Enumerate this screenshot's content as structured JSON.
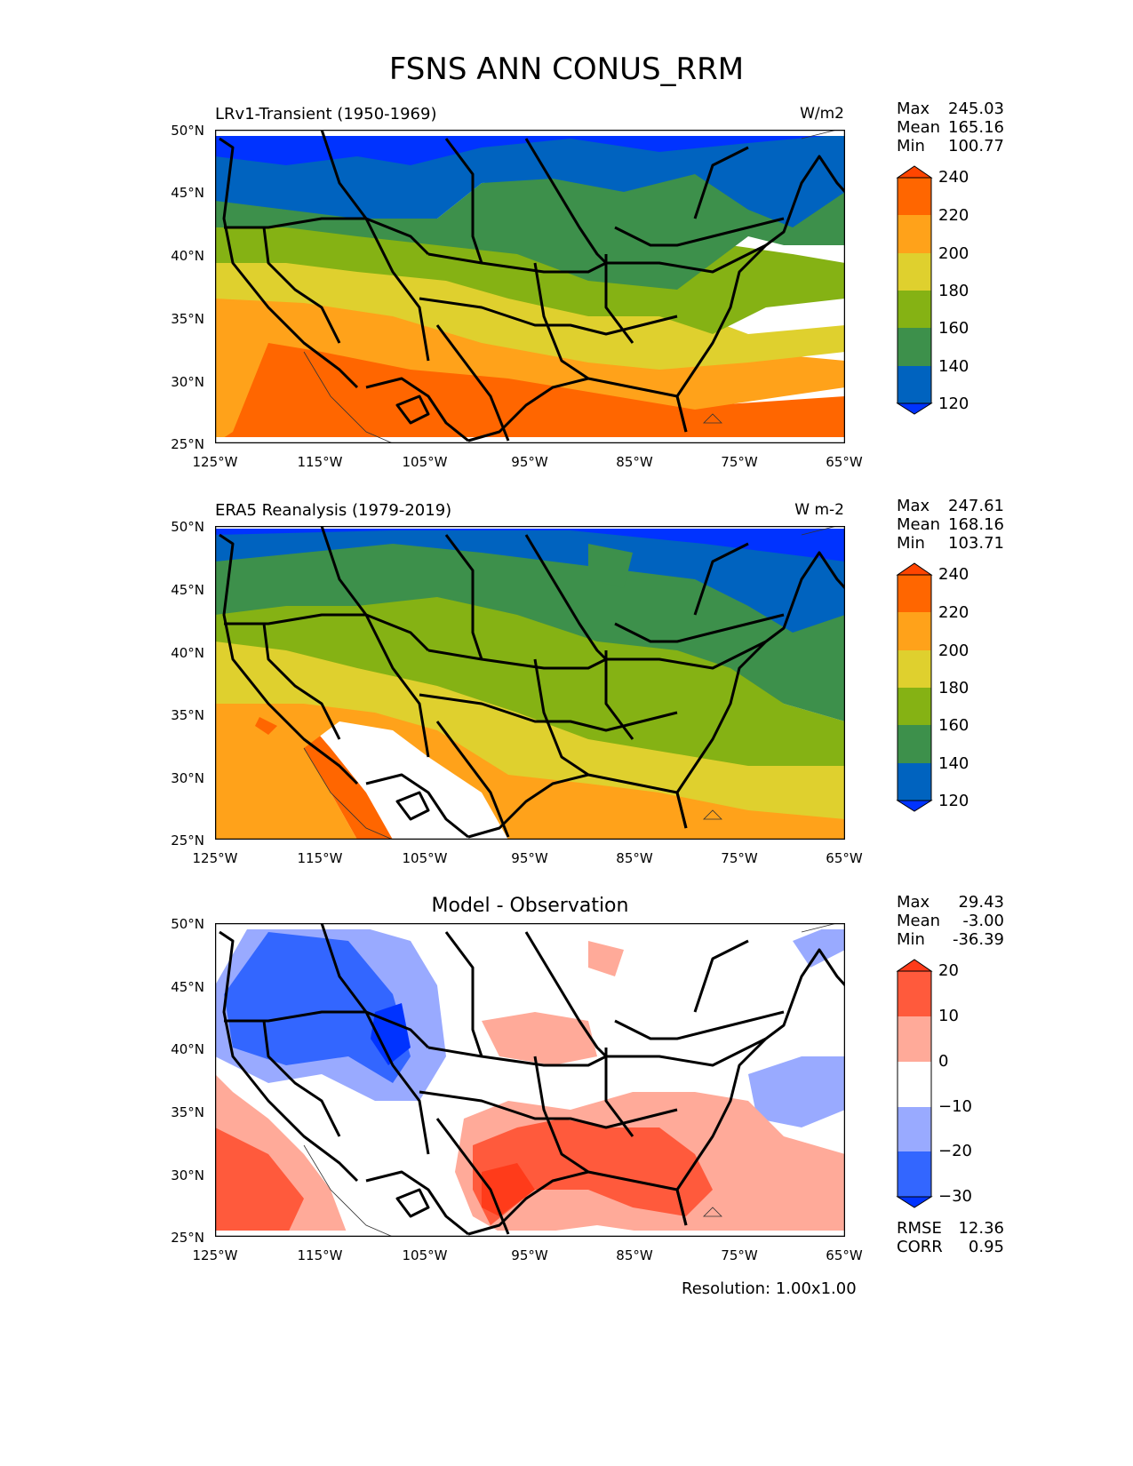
{
  "figure": {
    "title": "FSNS ANN CONUS_RRM",
    "resolution": "Resolution: 1.00x1.00"
  },
  "panels": [
    {
      "title": "LRv1-Transient (1950-1969)",
      "units": "W/m2",
      "stats": {
        "max_label": "Max",
        "max": "245.03",
        "mean_label": "Mean",
        "mean": "165.16",
        "min_label": "Min",
        "min": "100.77"
      },
      "colorbar": {
        "labels": [
          "240",
          "220",
          "200",
          "180",
          "160",
          "140",
          "120"
        ],
        "colors": [
          "#ff4500",
          "#ff6600",
          "#ffa21a",
          "#dfd02e",
          "#85b214",
          "#3d904b",
          "#0063bf",
          "#0033ff"
        ]
      }
    },
    {
      "title": "ERA5 Reanalysis (1979-2019)",
      "units": "W m-2",
      "stats": {
        "max_label": "Max",
        "max": "247.61",
        "mean_label": "Mean",
        "mean": "168.16",
        "min_label": "Min",
        "min": "103.71"
      },
      "colorbar": {
        "labels": [
          "240",
          "220",
          "200",
          "180",
          "160",
          "140",
          "120"
        ],
        "colors": [
          "#ff4500",
          "#ff6600",
          "#ffa21a",
          "#dfd02e",
          "#85b214",
          "#3d904b",
          "#0063bf",
          "#0033ff"
        ]
      }
    },
    {
      "title": "Model - Observation",
      "units": "",
      "stats": {
        "max_label": "Max",
        "max": "29.43",
        "mean_label": "Mean",
        "mean": "-3.00",
        "min_label": "Min",
        "min": "-36.39"
      },
      "colorbar": {
        "labels": [
          "20",
          "10",
          "0",
          "−10",
          "−20",
          "−30"
        ],
        "colors": [
          "#ff3b1a",
          "#ff5a3c",
          "#ffaa99",
          "#ffffff",
          "#99aaff",
          "#3366ff",
          "#0033ff"
        ]
      },
      "rmse_label": "RMSE",
      "rmse": "12.36",
      "corr_label": "CORR",
      "corr": "0.95"
    }
  ],
  "axes": {
    "lat_ticks": [
      "50°N",
      "45°N",
      "40°N",
      "35°N",
      "30°N",
      "25°N"
    ],
    "lon_ticks": [
      "125°W",
      "115°W",
      "105°W",
      "95°W",
      "85°W",
      "75°W",
      "65°W"
    ]
  }
}
